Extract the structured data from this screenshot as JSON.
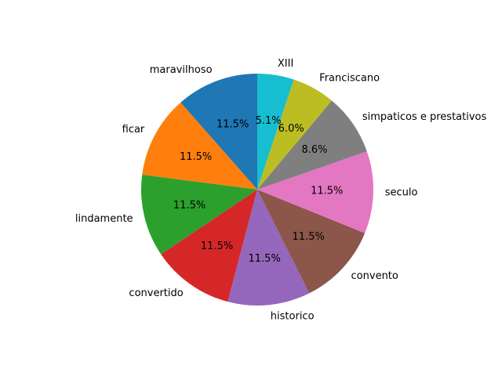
{
  "chart_data": {
    "type": "pie",
    "title": "",
    "start_angle_deg": 90,
    "direction": "counterclockwise",
    "slices": [
      {
        "label": "maravilhoso",
        "percent": 11.5,
        "percent_label": "11.5%",
        "color": "#1f77b4"
      },
      {
        "label": "ficar",
        "percent": 11.5,
        "percent_label": "11.5%",
        "color": "#ff7f0e"
      },
      {
        "label": "lindamente",
        "percent": 11.5,
        "percent_label": "11.5%",
        "color": "#2ca02c"
      },
      {
        "label": "convertido",
        "percent": 11.5,
        "percent_label": "11.5%",
        "color": "#d62728"
      },
      {
        "label": "historico",
        "percent": 11.5,
        "percent_label": "11.5%",
        "color": "#9467bd"
      },
      {
        "label": "convento",
        "percent": 11.5,
        "percent_label": "11.5%",
        "color": "#8c564b"
      },
      {
        "label": "seculo",
        "percent": 11.5,
        "percent_label": "11.5%",
        "color": "#e377c2"
      },
      {
        "label": "simpaticos e prestativos",
        "percent": 8.6,
        "percent_label": "8.6%",
        "color": "#7f7f7f"
      },
      {
        "label": "Franciscano",
        "percent": 6.0,
        "percent_label": "6.0%",
        "color": "#bcbd22"
      },
      {
        "label": "XIII",
        "percent": 5.1,
        "percent_label": "5.1%",
        "color": "#17becf"
      }
    ]
  }
}
